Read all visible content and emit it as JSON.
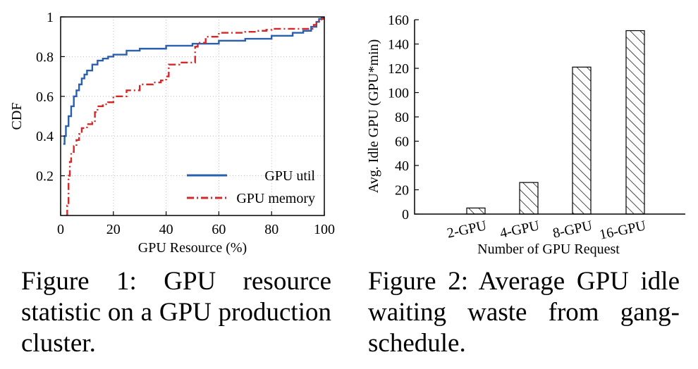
{
  "chart_data": [
    {
      "type": "line",
      "title": "",
      "xlabel": "GPU Resource (%)",
      "ylabel": "CDF",
      "xlim": [
        0,
        100
      ],
      "ylim": [
        0,
        1
      ],
      "x_ticks": [
        "0",
        "20",
        "40",
        "60",
        "80",
        "100"
      ],
      "y_ticks": [
        "0.2",
        "0.4",
        "0.6",
        "0.8",
        "1"
      ],
      "grid": true,
      "legend": "bottom-right",
      "colors": {
        "gpu_util": "#2a5fb0",
        "gpu_memory": "#d62728"
      },
      "series": [
        {
          "name": "GPU util",
          "x": [
            1,
            1.5,
            2,
            3,
            4,
            5,
            6,
            7,
            8,
            9,
            10,
            12,
            14,
            16,
            18,
            20,
            25,
            30,
            40,
            50,
            60,
            70,
            80,
            88,
            92,
            95,
            97,
            98,
            99,
            100
          ],
          "y": [
            0.36,
            0.4,
            0.45,
            0.5,
            0.55,
            0.6,
            0.63,
            0.66,
            0.69,
            0.71,
            0.73,
            0.76,
            0.78,
            0.79,
            0.8,
            0.81,
            0.83,
            0.84,
            0.855,
            0.865,
            0.88,
            0.89,
            0.905,
            0.92,
            0.93,
            0.95,
            0.975,
            0.99,
            0.995,
            1.0
          ]
        },
        {
          "name": "GPU memory",
          "x": [
            2,
            2.5,
            3,
            3.5,
            4,
            5,
            6,
            7,
            8,
            10,
            12,
            13,
            14,
            15,
            16,
            18,
            20,
            25,
            30,
            35,
            38,
            40,
            41,
            45,
            50,
            51,
            52,
            55,
            60,
            65,
            70,
            75,
            78,
            80,
            85,
            90,
            95,
            96,
            97,
            98,
            99,
            100
          ],
          "y": [
            0.0,
            0.05,
            0.2,
            0.27,
            0.32,
            0.35,
            0.38,
            0.41,
            0.44,
            0.46,
            0.47,
            0.52,
            0.55,
            0.55,
            0.56,
            0.57,
            0.6,
            0.63,
            0.66,
            0.67,
            0.68,
            0.7,
            0.76,
            0.77,
            0.77,
            0.85,
            0.87,
            0.9,
            0.92,
            0.92,
            0.925,
            0.93,
            0.935,
            0.94,
            0.94,
            0.94,
            0.94,
            0.96,
            0.97,
            0.98,
            0.99,
            1.0
          ]
        }
      ]
    },
    {
      "type": "bar",
      "title": "",
      "xlabel": "Number of GPU Request",
      "ylabel": "Avg. Idle GPU (GPU*min)",
      "ylim": [
        0,
        160
      ],
      "y_ticks": [
        "0",
        "20",
        "40",
        "60",
        "80",
        "100",
        "120",
        "140",
        "160"
      ],
      "categories": [
        "2-GPU",
        "4-GPU",
        "8-GPU",
        "16-GPU"
      ],
      "values": [
        5,
        26,
        121,
        151
      ],
      "pattern": "hatched"
    }
  ],
  "captions": {
    "figure1": "Figure 1: GPU resource statistic on a GPU production cluster.",
    "figure2": "Figure 2: Average GPU idle waiting waste from gang-schedule."
  }
}
